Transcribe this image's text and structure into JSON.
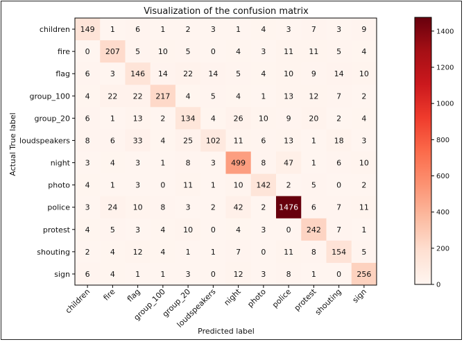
{
  "chart_data": {
    "type": "heatmap",
    "title": "Visualization of the confusion matrix",
    "xlabel": "Predicted label",
    "ylabel": "Actual True label",
    "colormap": "Reds",
    "colorbar_range": [
      0,
      1476
    ],
    "colorbar_ticks": [
      0,
      200,
      400,
      600,
      800,
      1000,
      1200,
      1400
    ],
    "categories": [
      "children",
      "fire",
      "flag",
      "group_100",
      "group_20",
      "loudspeakers",
      "night",
      "photo",
      "police",
      "protest",
      "shouting",
      "sign"
    ],
    "matrix": [
      [
        149,
        1,
        6,
        1,
        2,
        3,
        1,
        4,
        3,
        7,
        3,
        9
      ],
      [
        0,
        207,
        5,
        10,
        5,
        0,
        4,
        3,
        11,
        11,
        5,
        4
      ],
      [
        6,
        3,
        146,
        14,
        22,
        14,
        5,
        4,
        10,
        9,
        14,
        10
      ],
      [
        4,
        22,
        22,
        217,
        4,
        5,
        4,
        1,
        13,
        12,
        7,
        2
      ],
      [
        6,
        1,
        13,
        2,
        134,
        4,
        26,
        10,
        9,
        20,
        2,
        4
      ],
      [
        8,
        6,
        33,
        4,
        25,
        102,
        11,
        6,
        13,
        1,
        18,
        3
      ],
      [
        3,
        4,
        3,
        1,
        8,
        3,
        499,
        8,
        47,
        1,
        6,
        10
      ],
      [
        4,
        1,
        3,
        0,
        11,
        1,
        10,
        142,
        2,
        5,
        0,
        2
      ],
      [
        3,
        24,
        10,
        8,
        3,
        2,
        42,
        2,
        1476,
        6,
        7,
        11
      ],
      [
        4,
        5,
        3,
        4,
        10,
        0,
        4,
        3,
        0,
        242,
        7,
        1
      ],
      [
        2,
        4,
        12,
        4,
        1,
        1,
        7,
        0,
        11,
        8,
        154,
        5
      ],
      [
        6,
        4,
        1,
        1,
        3,
        0,
        12,
        3,
        8,
        1,
        0,
        256
      ]
    ]
  }
}
